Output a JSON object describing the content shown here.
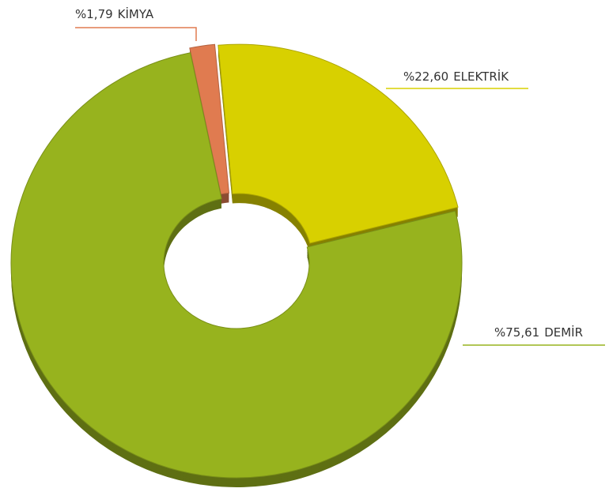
{
  "chart_data": {
    "type": "pie",
    "categories": [
      "KİMYA",
      "ELEKTRİK",
      "DEMİR"
    ],
    "values": [
      1.79,
      22.6,
      75.61
    ],
    "value_labels": [
      "%1,79",
      "%22,60",
      "%75,61"
    ],
    "colors": [
      "#e07b50",
      "#d8d000",
      "#97b31e"
    ]
  }
}
